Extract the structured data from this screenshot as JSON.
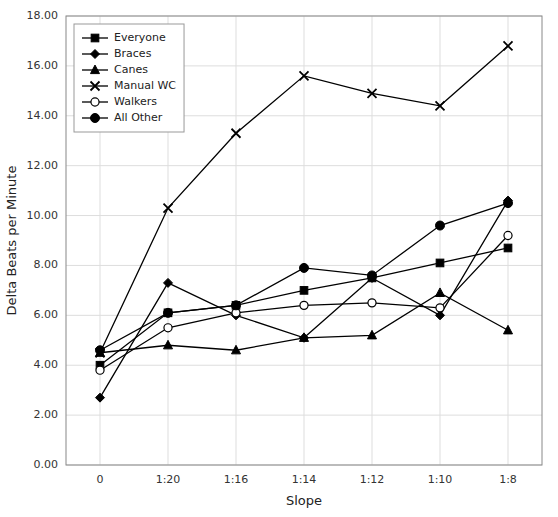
{
  "chart_data": {
    "type": "line",
    "categories": [
      "0",
      "1:20",
      "1:16",
      "1:14",
      "1:12",
      "1:10",
      "1:8"
    ],
    "series": [
      {
        "name": "Everyone",
        "color": "#000000",
        "marker": "square",
        "values": [
          4.0,
          6.1,
          6.4,
          7.0,
          7.5,
          8.1,
          8.7
        ]
      },
      {
        "name": "Braces",
        "color": "#000000",
        "marker": "diamond",
        "values": [
          2.7,
          7.3,
          6.0,
          5.1,
          7.5,
          6.0,
          10.6
        ]
      },
      {
        "name": "Canes",
        "color": "#000000",
        "marker": "triangle",
        "values": [
          4.5,
          4.8,
          4.6,
          5.1,
          5.2,
          6.9,
          5.4
        ]
      },
      {
        "name": "Manual WC",
        "color": "#000000",
        "marker": "x",
        "values": [
          4.5,
          10.3,
          13.3,
          15.6,
          14.9,
          14.4,
          16.8
        ]
      },
      {
        "name": "Walkers",
        "color": "#000000",
        "marker": "circle-open",
        "values": [
          3.8,
          5.5,
          6.1,
          6.4,
          6.5,
          6.3,
          9.2
        ]
      },
      {
        "name": "All Other",
        "color": "#000000",
        "marker": "circle",
        "values": [
          4.6,
          6.1,
          6.4,
          7.9,
          7.6,
          9.6,
          10.5
        ]
      }
    ],
    "xlabel": "Slope",
    "ylabel": "Delta Beats per Minute",
    "ylim": [
      0.0,
      18.0
    ],
    "yticks": [
      {
        "value": 0.0,
        "label": "0.00"
      },
      {
        "value": 2.0,
        "label": "2.00"
      },
      {
        "value": 4.0,
        "label": "4.00"
      },
      {
        "value": 6.0,
        "label": "6.00"
      },
      {
        "value": 8.0,
        "label": "8.00"
      },
      {
        "value": 10.0,
        "label": "10.00"
      },
      {
        "value": 12.0,
        "label": "12.00"
      },
      {
        "value": 14.0,
        "label": "14.00"
      },
      {
        "value": 16.0,
        "label": "16.00"
      },
      {
        "value": 18.0,
        "label": "18.00"
      }
    ],
    "grid": true,
    "legend": "upper left"
  }
}
